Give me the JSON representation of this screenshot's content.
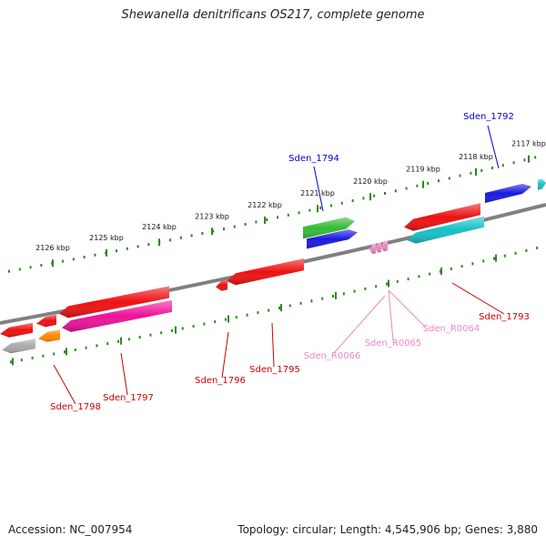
{
  "title": "Shewanella denitrificans OS217, complete genome",
  "footer": {
    "accession_label": "Accession:",
    "accession": "NC_007954",
    "topology_label": "Topology:",
    "topology": "circular",
    "length_label": "Length:",
    "length": "4,545,906 bp",
    "genes_label": "Genes:",
    "genes": "3,880"
  },
  "scale": {
    "ticks": [
      "2117 kbp",
      "2118 kbp",
      "2119 kbp",
      "2120 kbp",
      "2121 kbp",
      "2122 kbp",
      "2123 kbp",
      "2124 kbp",
      "2125 kbp",
      "2126 kbp"
    ]
  },
  "colors": {
    "backbone": "#808080",
    "ruler": "#2a8a1e",
    "gene_red": "#ee1111",
    "gene_blue": "#1a1adf",
    "gene_cyan": "#16c0c8",
    "gene_green": "#33bb33",
    "gene_magenta": "#ee1199",
    "gene_orange": "#ff8800",
    "gene_gray": "#aaaaaa",
    "rna_pink": "#ee88bb",
    "label_red": "#cc0000",
    "label_blue": "#0000cc",
    "label_pink": "#ee88bb"
  },
  "genes": [
    {
      "label": "Sden_1792",
      "color": "label_blue"
    },
    {
      "label": "Sden_1794",
      "color": "label_blue"
    },
    {
      "label": "Sden_1793",
      "color": "label_red"
    },
    {
      "label": "Sden_R0064",
      "color": "label_pink"
    },
    {
      "label": "Sden_R0065",
      "color": "label_pink"
    },
    {
      "label": "Sden_R0066",
      "color": "label_pink"
    },
    {
      "label": "Sden_1795",
      "color": "label_red"
    },
    {
      "label": "Sden_1796",
      "color": "label_red"
    },
    {
      "label": "Sden_1797",
      "color": "label_red"
    },
    {
      "label": "Sden_1798",
      "color": "label_red"
    }
  ]
}
